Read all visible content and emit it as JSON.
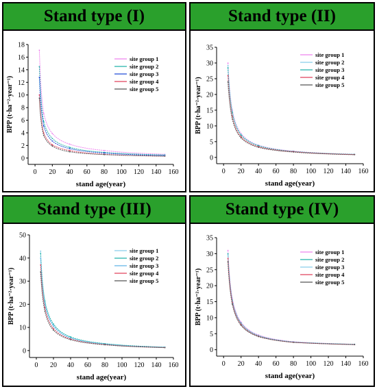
{
  "panels": [
    {
      "title": "Stand type (I)"
    },
    {
      "title": "Stand type (II)"
    },
    {
      "title": "Stand type (III)"
    },
    {
      "title": "Stand type (IV)"
    }
  ],
  "chart_data": [
    {
      "type": "line",
      "title": "Stand type (I)",
      "xlabel": "stand age(year)",
      "ylabel": "BPP (t·ha⁻²·year⁻¹)",
      "xlim": [
        -8,
        160
      ],
      "ylim": [
        -1,
        18
      ],
      "xticks": [
        0,
        20,
        40,
        60,
        80,
        100,
        120,
        140,
        160
      ],
      "yticks": [
        0,
        2,
        4,
        6,
        8,
        10,
        12,
        14,
        16,
        18
      ],
      "legend": "top-right",
      "x": [
        5,
        10,
        20,
        40,
        80,
        150
      ],
      "series": [
        {
          "name": "site group 1",
          "color": "#ee82ee",
          "values": [
            17.1,
            7.1,
            3.9,
            2.2,
            1.2,
            0.6
          ]
        },
        {
          "name": "site group 2",
          "color": "#20b2aa",
          "values": [
            14.5,
            5.8,
            3.1,
            1.7,
            0.9,
            0.5
          ]
        },
        {
          "name": "site group 3",
          "color": "#1e4bd6",
          "values": [
            12.8,
            5.1,
            2.7,
            1.5,
            0.8,
            0.4
          ]
        },
        {
          "name": "site group 4",
          "color": "#e0405a",
          "values": [
            10.0,
            4.0,
            2.1,
            1.2,
            0.6,
            0.3
          ]
        },
        {
          "name": "site group 5",
          "color": "#555555",
          "values": [
            9.5,
            3.6,
            1.9,
            1.0,
            0.55,
            0.3
          ]
        }
      ]
    },
    {
      "type": "line",
      "title": "Stand type (II)",
      "xlabel": "stand age(year)",
      "ylabel": "BPP (t·ha⁻²·year⁻¹)",
      "xlim": [
        -8,
        160
      ],
      "ylim": [
        -2,
        35
      ],
      "xticks": [
        0,
        20,
        40,
        60,
        80,
        100,
        120,
        140,
        160
      ],
      "yticks": [
        0,
        5,
        10,
        15,
        20,
        25,
        30,
        35
      ],
      "legend": "top-right",
      "x": [
        5,
        10,
        20,
        40,
        80,
        150
      ],
      "series": [
        {
          "name": "site group 1",
          "color": "#ee82ee",
          "values": [
            30.0,
            15.0,
            7.6,
            3.9,
            2.0,
            1.0
          ]
        },
        {
          "name": "site group 2",
          "color": "#87ceeb",
          "values": [
            29.2,
            14.6,
            7.3,
            3.8,
            1.9,
            1.0
          ]
        },
        {
          "name": "site group 3",
          "color": "#20b2aa",
          "values": [
            28.5,
            14.2,
            7.1,
            3.7,
            1.9,
            0.95
          ]
        },
        {
          "name": "site group 4",
          "color": "#e0405a",
          "values": [
            26.0,
            13.0,
            6.6,
            3.4,
            1.8,
            0.9
          ]
        },
        {
          "name": "site group 5",
          "color": "#555555",
          "values": [
            24.0,
            12.2,
            6.2,
            3.2,
            1.7,
            0.85
          ]
        }
      ]
    },
    {
      "type": "line",
      "title": "Stand type (III)",
      "xlabel": "stand age(year)",
      "ylabel": "BPP (t·ha⁻²·year⁻¹)",
      "xlim": [
        -8,
        160
      ],
      "ylim": [
        -3,
        50
      ],
      "xticks": [
        0,
        20,
        40,
        60,
        80,
        100,
        120,
        140,
        160
      ],
      "yticks": [
        0,
        10,
        20,
        30,
        40,
        50
      ],
      "legend": "top-right",
      "x": [
        5,
        10,
        20,
        40,
        80,
        150
      ],
      "series": [
        {
          "name": "site group 1",
          "color": "#87ceeb",
          "values": [
            43.0,
            21.0,
            11.0,
            5.6,
            2.9,
            1.4
          ]
        },
        {
          "name": "site group 2",
          "color": "#20b2aa",
          "values": [
            42.0,
            21.5,
            11.5,
            5.9,
            3.0,
            1.5
          ]
        },
        {
          "name": "site group 3",
          "color": "#5fb4e8",
          "values": [
            40.0,
            20.0,
            10.5,
            5.4,
            2.8,
            1.4
          ]
        },
        {
          "name": "site group 4",
          "color": "#e0405a",
          "values": [
            37.0,
            18.5,
            9.5,
            5.0,
            2.6,
            1.3
          ]
        },
        {
          "name": "site group 5",
          "color": "#555555",
          "values": [
            34.0,
            17.0,
            8.8,
            4.7,
            2.5,
            1.25
          ]
        }
      ]
    },
    {
      "type": "line",
      "title": "Stand type (IV)",
      "xlabel": "stand age(year)",
      "ylabel": "BPP (t·ha⁻²·year⁻¹)",
      "xlim": [
        -8,
        160
      ],
      "ylim": [
        -2,
        35
      ],
      "xticks": [
        0,
        20,
        40,
        60,
        80,
        100,
        120,
        140,
        160
      ],
      "yticks": [
        0,
        5,
        10,
        15,
        20,
        25,
        30,
        35
      ],
      "legend": "top-right",
      "x": [
        5,
        10,
        20,
        40,
        80,
        150
      ],
      "series": [
        {
          "name": "site group 1",
          "color": "#ee82ee",
          "values": [
            31.0,
            16.0,
            8.6,
            4.6,
            2.5,
            1.7
          ]
        },
        {
          "name": "site group 2",
          "color": "#20b2aa",
          "values": [
            30.0,
            15.5,
            8.3,
            4.4,
            2.4,
            1.7
          ]
        },
        {
          "name": "site group 3",
          "color": "#87ceeb",
          "values": [
            29.5,
            15.2,
            8.1,
            4.3,
            2.4,
            1.6
          ]
        },
        {
          "name": "site group 4",
          "color": "#e0405a",
          "values": [
            28.5,
            14.8,
            7.9,
            4.2,
            2.3,
            1.6
          ]
        },
        {
          "name": "site group 5",
          "color": "#555555",
          "values": [
            27.5,
            14.2,
            7.6,
            4.1,
            2.3,
            1.6
          ]
        }
      ]
    }
  ]
}
